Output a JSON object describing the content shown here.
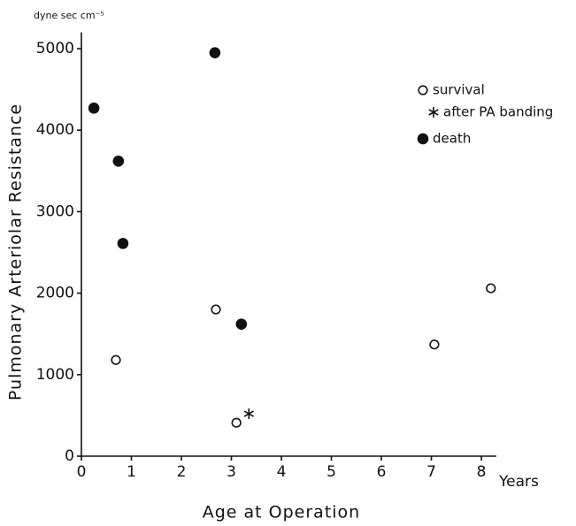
{
  "chart_data": {
    "type": "scatter",
    "y_unit": "dyne sec cm⁻⁵",
    "x_unit": "Years",
    "xlabel": "Age at Operation",
    "ylabel": "Pulmonary Arteriolar Resistance",
    "xlim": [
      0,
      8.3
    ],
    "ylim": [
      0,
      5200
    ],
    "xticks": [
      0,
      1,
      2,
      3,
      4,
      5,
      6,
      7,
      8
    ],
    "yticks": [
      0,
      1000,
      2000,
      3000,
      4000,
      5000
    ],
    "grid": false,
    "legend": "upper right",
    "series": [
      {
        "name": "survival",
        "color": "#111111",
        "marker": "open",
        "x": [
          0.69,
          2.69,
          3.1,
          7.06,
          8.19
        ],
        "values": [
          1180,
          1800,
          410,
          1370,
          2060
        ]
      },
      {
        "name": "after PA banding",
        "color": "#111111",
        "marker": "asterisk",
        "x": [
          3.35
        ],
        "values": [
          520
        ]
      },
      {
        "name": "death",
        "color": "#111111",
        "marker": "filled",
        "x": [
          0.25,
          0.74,
          0.83,
          2.67,
          3.2
        ],
        "values": [
          4270,
          3620,
          2610,
          4950,
          1620
        ]
      }
    ]
  }
}
